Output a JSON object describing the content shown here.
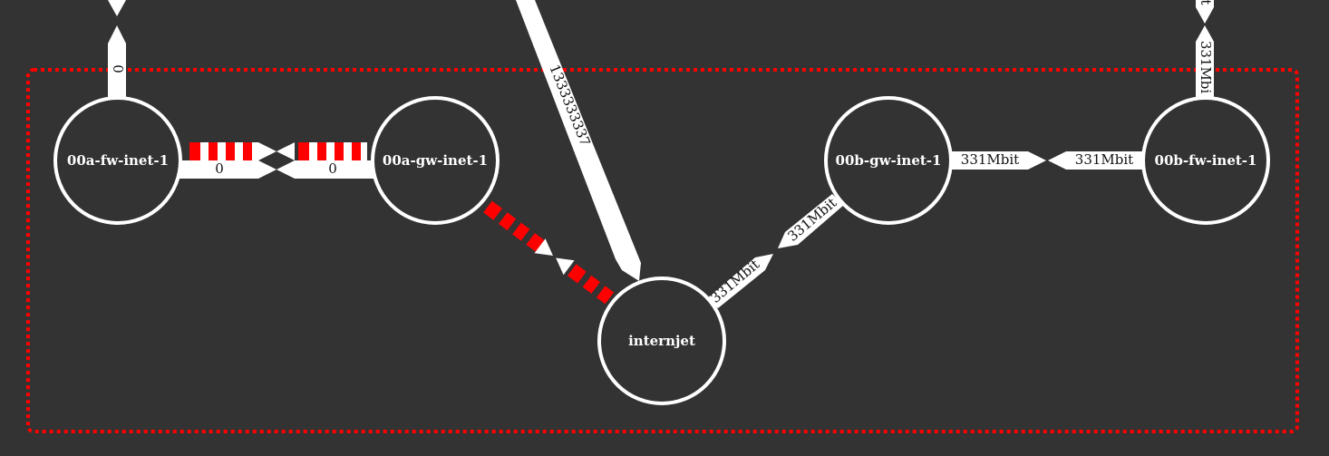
{
  "colors": {
    "background": "#333333",
    "node_stroke": "#ffffff",
    "edge_fill": "#ffffff",
    "down_edge": "#ff0000",
    "group_border": "#ff0000",
    "label_text": "#111111"
  },
  "nodes": {
    "fw_a": "00a-fw-inet-1",
    "gw_a": "00a-gw-inet-1",
    "hub": "internjet",
    "gw_b": "00b-gw-inet-1",
    "fw_b": "00b-fw-inet-1"
  },
  "edges": {
    "fw_a_up": "0",
    "fw_a_to_gw_a": "0",
    "gw_a_to_fw_a": "0",
    "external_to_hub": "1333333337",
    "hub_to_gw_b": "331Mbit",
    "gw_b_to_hub": "331Mbit",
    "gw_b_to_fw_b": "331Mbit",
    "fw_b_to_gw_b": "331Mbit",
    "fw_b_up_lower": "331Mbi",
    "fw_b_up_upper": "it"
  }
}
